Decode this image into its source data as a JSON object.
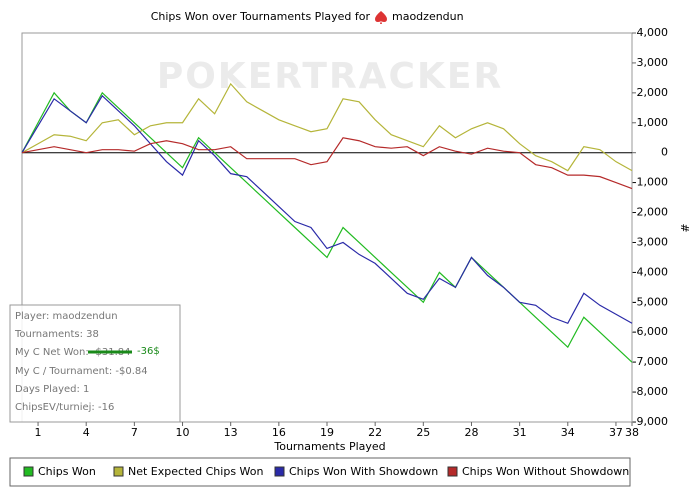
{
  "chart_data": {
    "type": "line",
    "title": "Chips Won over Tournaments Played for",
    "title_player": "maodzendun",
    "watermark": "POKERTRACKER",
    "x_label": "Tournaments Played",
    "y_label": "#",
    "x": [
      0,
      1,
      2,
      3,
      4,
      5,
      6,
      7,
      8,
      9,
      10,
      11,
      12,
      13,
      14,
      15,
      16,
      17,
      18,
      19,
      20,
      21,
      22,
      23,
      24,
      25,
      26,
      27,
      28,
      29,
      30,
      31,
      32,
      33,
      34,
      35,
      36,
      37,
      38
    ],
    "xlim": [
      0,
      38
    ],
    "xticks": [
      1,
      4,
      7,
      10,
      13,
      16,
      19,
      22,
      25,
      28,
      31,
      34,
      37,
      38
    ],
    "ylim": [
      -9000,
      4000
    ],
    "yticks": [
      {
        "value": -9000,
        "label": "-9,000"
      },
      {
        "value": -8000,
        "label": "-8,000"
      },
      {
        "value": -7000,
        "label": "-7,000"
      },
      {
        "value": -6000,
        "label": "-6,000"
      },
      {
        "value": -5000,
        "label": "-5,000"
      },
      {
        "value": -4000,
        "label": "-4,000"
      },
      {
        "value": -3000,
        "label": "-3,000"
      },
      {
        "value": -2000,
        "label": "-2,000"
      },
      {
        "value": -1000,
        "label": "-1,000"
      },
      0,
      {
        "value": 1000,
        "label": "1,000"
      },
      {
        "value": 2000,
        "label": "2,000"
      },
      {
        "value": 3000,
        "label": "3,000"
      },
      {
        "value": 4000,
        "label": "4,000"
      }
    ],
    "series": [
      {
        "name": "Chips Won",
        "color": "#22bb22",
        "values": [
          0,
          1000,
          2000,
          1400,
          1000,
          2000,
          1500,
          1000,
          500,
          0,
          -500,
          500,
          0,
          -500,
          -1000,
          -1500,
          -2000,
          -2500,
          -3000,
          -3500,
          -2500,
          -3000,
          -3500,
          -4000,
          -4500,
          -5000,
          -4000,
          -4500,
          -3500,
          -4000,
          -4500,
          -5000,
          -5500,
          -6000,
          -6500,
          -5500,
          -6000,
          -6500,
          -7000
        ]
      },
      {
        "name": "Net Expected Chips Won",
        "color": "#b5b53a",
        "values": [
          0,
          300,
          600,
          550,
          400,
          1000,
          1100,
          600,
          900,
          1000,
          1000,
          1800,
          1300,
          2300,
          1700,
          1400,
          1100,
          900,
          700,
          800,
          1800,
          1700,
          1100,
          600,
          400,
          200,
          900,
          500,
          800,
          1000,
          800,
          300,
          -100,
          -300,
          -600,
          200,
          100,
          -300,
          -600
        ]
      },
      {
        "name": "Chips Won With Showdown",
        "color": "#2a2aa8",
        "values": [
          0,
          900,
          1800,
          1400,
          1000,
          1900,
          1400,
          900,
          300,
          -300,
          -750,
          400,
          -100,
          -700,
          -800,
          -1300,
          -1800,
          -2300,
          -2500,
          -3200,
          -3000,
          -3400,
          -3700,
          -4200,
          -4700,
          -4900,
          -4200,
          -4500,
          -3500,
          -4100,
          -4500,
          -5000,
          -5100,
          -5500,
          -5700,
          -4700,
          -5100,
          -5400,
          -5700
        ]
      },
      {
        "name": "Chips Won Without Showdown",
        "color": "#b52a2a",
        "values": [
          0,
          100,
          200,
          100,
          0,
          100,
          100,
          50,
          300,
          400,
          300,
          100,
          100,
          200,
          -200,
          -200,
          -200,
          -200,
          -400,
          -300,
          500,
          400,
          200,
          150,
          200,
          -100,
          200,
          50,
          -50,
          150,
          50,
          0,
          -400,
          -500,
          -750,
          -750,
          -800,
          -1000,
          -1200
        ]
      }
    ],
    "info_box": [
      "Player: maodzendun",
      "Tournaments: 38",
      "My C Net Won: -$31.84",
      "My C / Tournament: -$0.84",
      "Days Played: 1",
      "ChipsEV/turniej: -16"
    ],
    "handwritten_note": "-36$"
  }
}
